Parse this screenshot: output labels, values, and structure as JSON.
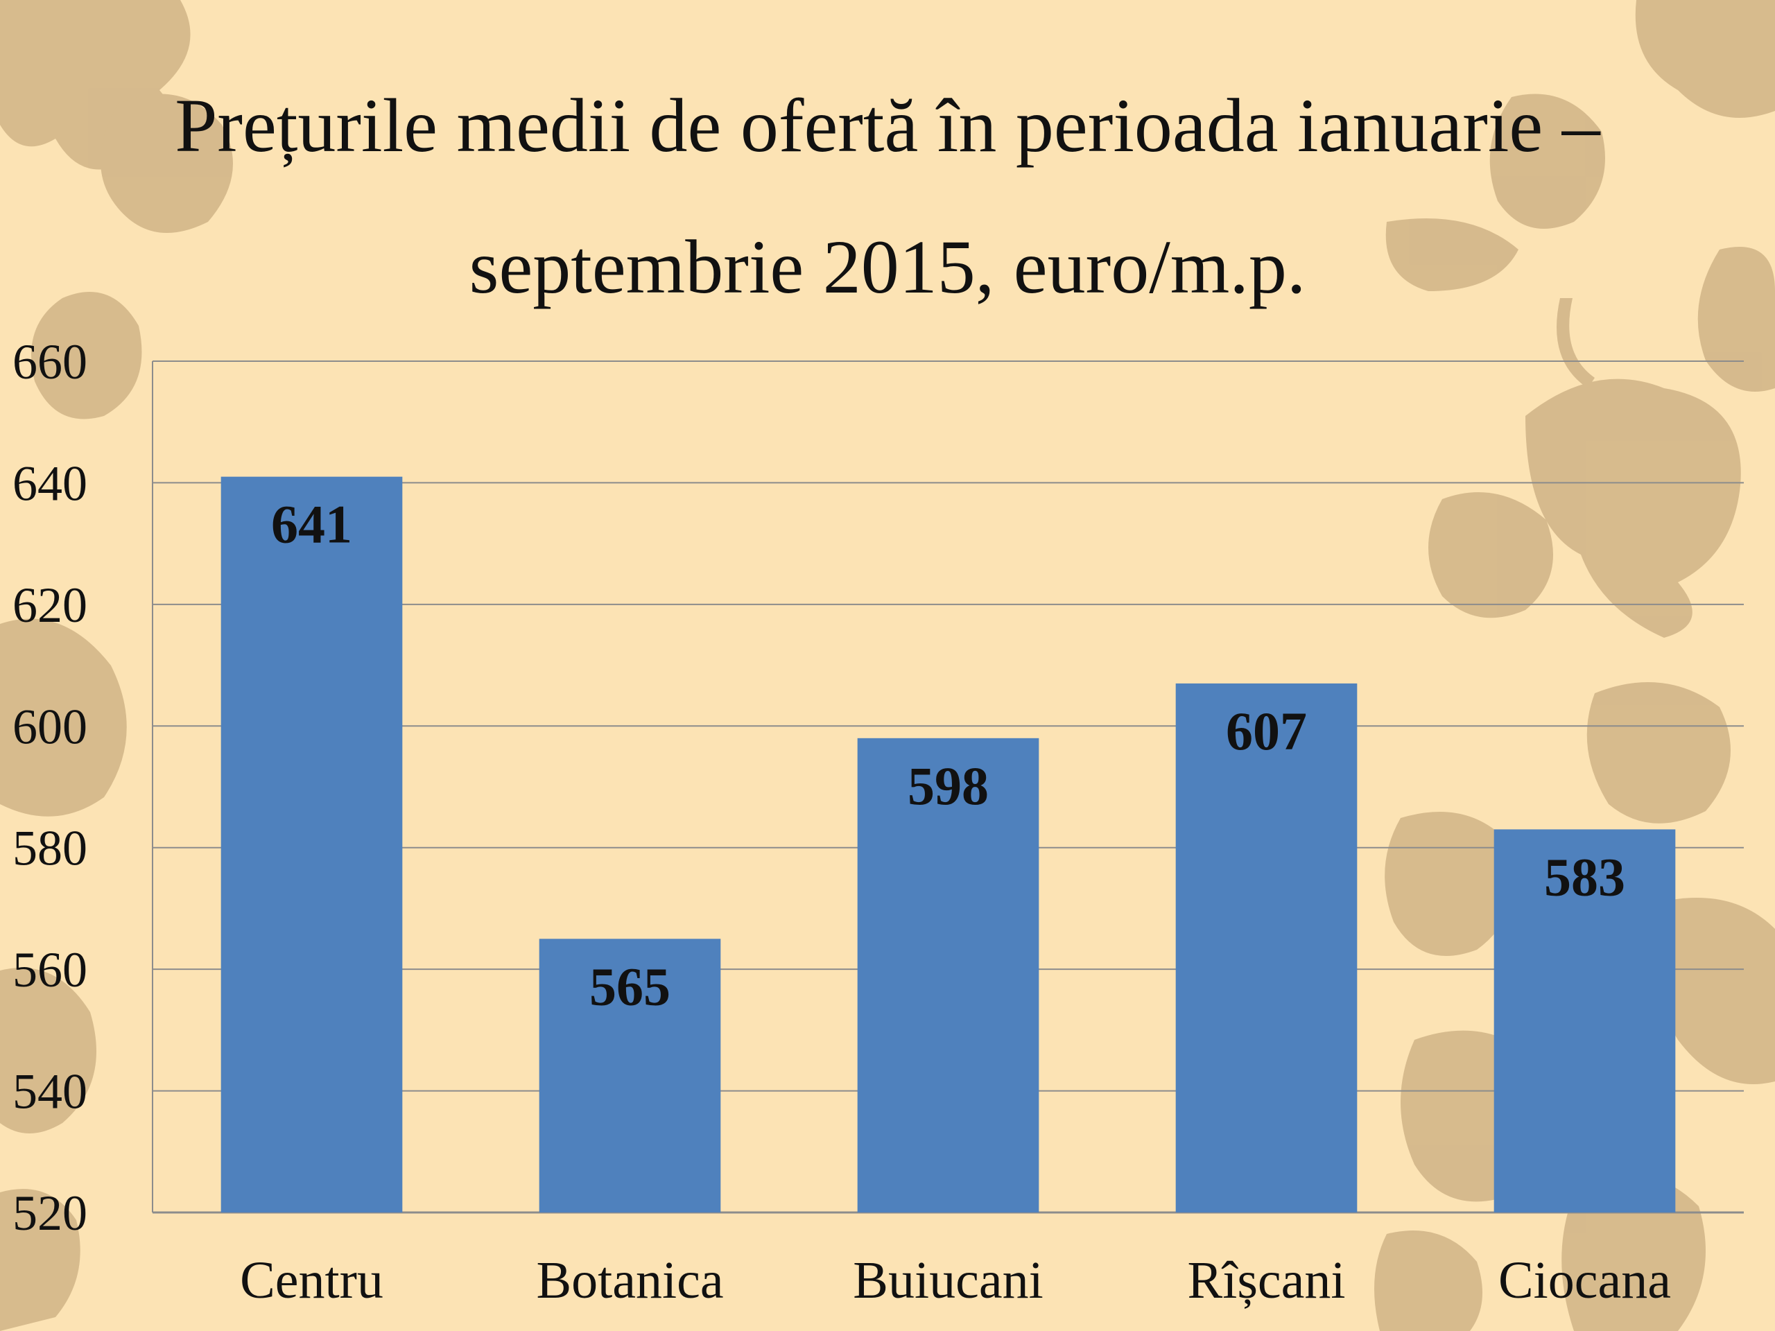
{
  "slide": {
    "title_line_1": "Prețurile medii de ofertă în perioada ianuarie –",
    "title_line_2": "septembrie 2015, euro/m.p."
  },
  "colors": {
    "background": "#fce3b4",
    "leaf": "#b89a6e",
    "bar": "#4f81bd",
    "grid": "#8c8c8c",
    "text": "#111111"
  },
  "chart_data": {
    "type": "bar",
    "categories": [
      "Centru",
      "Botanica",
      "Buiucani",
      "Rîșcani",
      "Ciocana"
    ],
    "values": [
      641,
      565,
      598,
      607,
      583
    ],
    "ylim": [
      520,
      660
    ],
    "yticks": [
      520,
      540,
      560,
      580,
      600,
      620,
      640,
      660
    ],
    "data_labels": true,
    "grid": true,
    "legend": false
  }
}
